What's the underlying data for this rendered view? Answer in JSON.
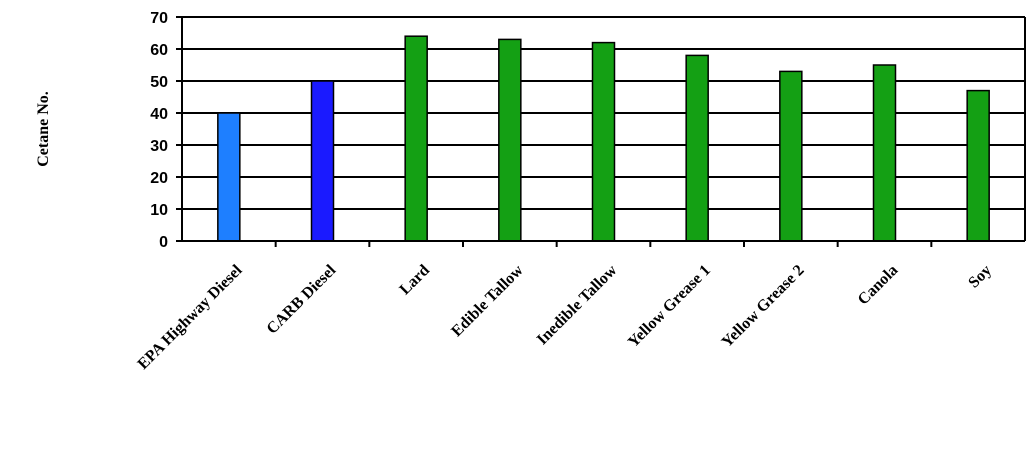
{
  "chart_data": {
    "type": "bar",
    "ylabel": "Cetane No.",
    "xlabel": "",
    "title": "",
    "ylim": [
      0,
      70
    ],
    "yticks": [
      0,
      10,
      20,
      30,
      40,
      50,
      60,
      70
    ],
    "grid": true,
    "categories": [
      "EPA Highway Diesel",
      "CARB Diesel",
      "Lard",
      "Edible Tallow",
      "Inedible Tallow",
      "Yellow Grease 1",
      "Yellow Grease 2",
      "Canola",
      "Soy"
    ],
    "values": [
      40,
      50,
      64,
      63,
      62,
      58,
      53,
      55,
      47
    ],
    "colors": [
      "#1e7fff",
      "#1a1aff",
      "#14a014",
      "#14a014",
      "#14a014",
      "#14a014",
      "#14a014",
      "#14a014",
      "#14a014"
    ]
  }
}
